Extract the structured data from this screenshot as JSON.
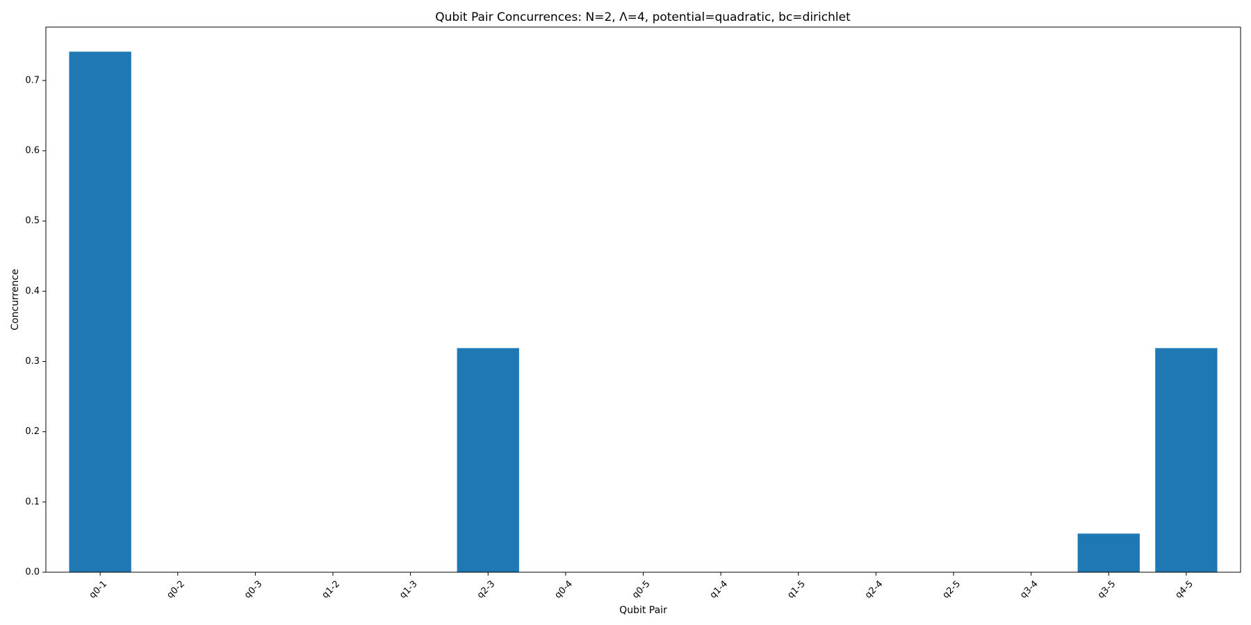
{
  "chart_data": {
    "type": "bar",
    "title": "Qubit Pair Concurrences: N=2, Λ=4, potential=quadratic, bc=dirichlet",
    "xlabel": "Qubit Pair",
    "ylabel": "Concurrence",
    "categories": [
      "q0-1",
      "q0-2",
      "q0-3",
      "q1-2",
      "q1-3",
      "q2-3",
      "q0-4",
      "q0-5",
      "q1-4",
      "q1-5",
      "q2-4",
      "q2-5",
      "q3-4",
      "q3-5",
      "q4-5"
    ],
    "values": [
      0.741,
      0,
      0,
      0,
      0,
      0.319,
      0,
      0,
      0,
      0,
      0,
      0,
      0,
      0.055,
      0.319
    ],
    "ylim": [
      0,
      0.776
    ],
    "yticks": [
      0.0,
      0.1,
      0.2,
      0.3,
      0.4,
      0.5,
      0.6,
      0.7
    ],
    "ytick_labels": [
      "0.0",
      "0.1",
      "0.2",
      "0.3",
      "0.4",
      "0.5",
      "0.6",
      "0.7"
    ],
    "bar_color": "#1f77b4",
    "grid": false,
    "legend": "none"
  }
}
